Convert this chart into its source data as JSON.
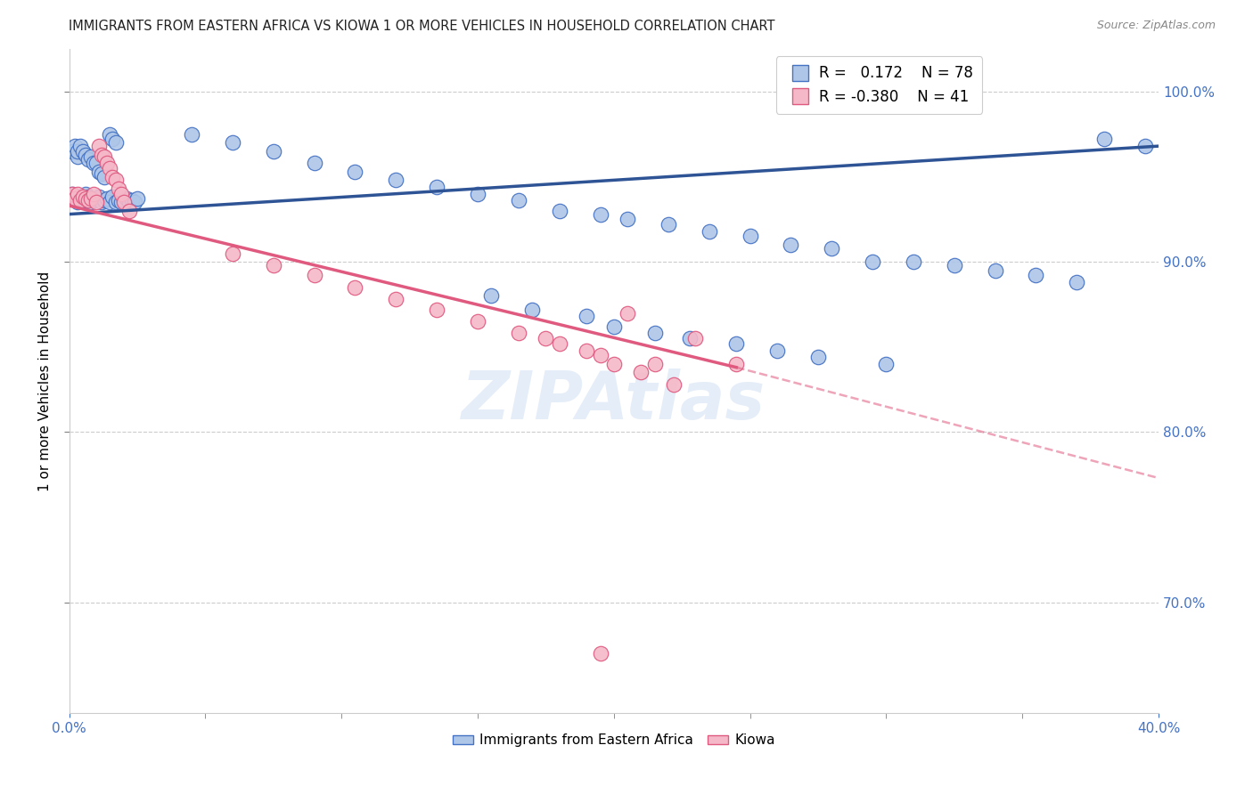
{
  "title": "IMMIGRANTS FROM EASTERN AFRICA VS KIOWA 1 OR MORE VEHICLES IN HOUSEHOLD CORRELATION CHART",
  "source": "Source: ZipAtlas.com",
  "ylabel": "1 or more Vehicles in Household",
  "xlim": [
    0.0,
    0.4
  ],
  "ylim": [
    0.635,
    1.025
  ],
  "yticks": [
    0.7,
    0.8,
    0.9,
    1.0
  ],
  "xticks_minor": [
    0.05,
    0.1,
    0.15,
    0.2,
    0.25,
    0.3,
    0.35
  ],
  "blue_R": 0.172,
  "blue_N": 78,
  "pink_R": -0.38,
  "pink_N": 41,
  "blue_color": "#aec6e8",
  "blue_edge_color": "#4472c4",
  "blue_line_color": "#2f5496",
  "pink_color": "#f5b8c8",
  "pink_edge_color": "#e05a80",
  "pink_line_color": "#e05a80",
  "blue_label": "Immigrants from Eastern Africa",
  "pink_label": "Kiowa",
  "watermark": "ZIPAtlas",
  "blue_line_x0": 0.0,
  "blue_line_y0": 0.928,
  "blue_line_x1": 0.4,
  "blue_line_y1": 0.968,
  "pink_line_x0": 0.0,
  "pink_line_y0": 0.933,
  "pink_line_x1_solid": 0.245,
  "pink_line_y1_solid": 0.838,
  "pink_line_x1_dash": 0.4,
  "pink_line_y1_dash": 0.773,
  "blue_x": [
    0.001,
    0.002,
    0.003,
    0.004,
    0.005,
    0.006,
    0.006,
    0.007,
    0.008,
    0.009,
    0.01,
    0.011,
    0.012,
    0.013,
    0.014,
    0.015,
    0.016,
    0.017,
    0.018,
    0.019,
    0.02,
    0.021,
    0.022,
    0.023,
    0.024,
    0.025,
    0.001,
    0.002,
    0.003,
    0.003,
    0.004,
    0.005,
    0.006,
    0.007,
    0.008,
    0.009,
    0.01,
    0.011,
    0.012,
    0.013,
    0.015,
    0.016,
    0.017,
    0.045,
    0.06,
    0.075,
    0.09,
    0.105,
    0.12,
    0.135,
    0.15,
    0.165,
    0.18,
    0.195,
    0.205,
    0.22,
    0.235,
    0.25,
    0.265,
    0.28,
    0.295,
    0.31,
    0.325,
    0.34,
    0.355,
    0.37,
    0.155,
    0.17,
    0.19,
    0.2,
    0.215,
    0.228,
    0.245,
    0.26,
    0.275,
    0.3,
    0.38,
    0.395
  ],
  "blue_y": [
    0.94,
    0.937,
    0.935,
    0.938,
    0.936,
    0.94,
    0.937,
    0.938,
    0.935,
    0.936,
    0.937,
    0.938,
    0.935,
    0.936,
    0.937,
    0.935,
    0.938,
    0.935,
    0.936,
    0.935,
    0.936,
    0.937,
    0.935,
    0.936,
    0.935,
    0.937,
    0.965,
    0.968,
    0.962,
    0.965,
    0.968,
    0.965,
    0.963,
    0.96,
    0.962,
    0.958,
    0.958,
    0.953,
    0.952,
    0.95,
    0.975,
    0.972,
    0.97,
    0.975,
    0.97,
    0.965,
    0.958,
    0.953,
    0.948,
    0.944,
    0.94,
    0.936,
    0.93,
    0.928,
    0.925,
    0.922,
    0.918,
    0.915,
    0.91,
    0.908,
    0.9,
    0.9,
    0.898,
    0.895,
    0.892,
    0.888,
    0.88,
    0.872,
    0.868,
    0.862,
    0.858,
    0.855,
    0.852,
    0.848,
    0.844,
    0.84,
    0.972,
    0.968
  ],
  "pink_x": [
    0.001,
    0.002,
    0.003,
    0.004,
    0.005,
    0.006,
    0.007,
    0.008,
    0.009,
    0.01,
    0.011,
    0.012,
    0.013,
    0.014,
    0.015,
    0.016,
    0.017,
    0.018,
    0.019,
    0.02,
    0.022,
    0.06,
    0.075,
    0.09,
    0.105,
    0.12,
    0.135,
    0.15,
    0.165,
    0.18,
    0.195,
    0.205,
    0.215,
    0.175,
    0.19,
    0.2,
    0.21,
    0.222,
    0.23,
    0.245,
    0.195
  ],
  "pink_y": [
    0.94,
    0.937,
    0.94,
    0.936,
    0.938,
    0.937,
    0.936,
    0.937,
    0.94,
    0.935,
    0.968,
    0.963,
    0.962,
    0.958,
    0.955,
    0.95,
    0.948,
    0.943,
    0.94,
    0.935,
    0.93,
    0.905,
    0.898,
    0.892,
    0.885,
    0.878,
    0.872,
    0.865,
    0.858,
    0.852,
    0.845,
    0.87,
    0.84,
    0.855,
    0.848,
    0.84,
    0.835,
    0.828,
    0.855,
    0.84,
    0.67
  ]
}
